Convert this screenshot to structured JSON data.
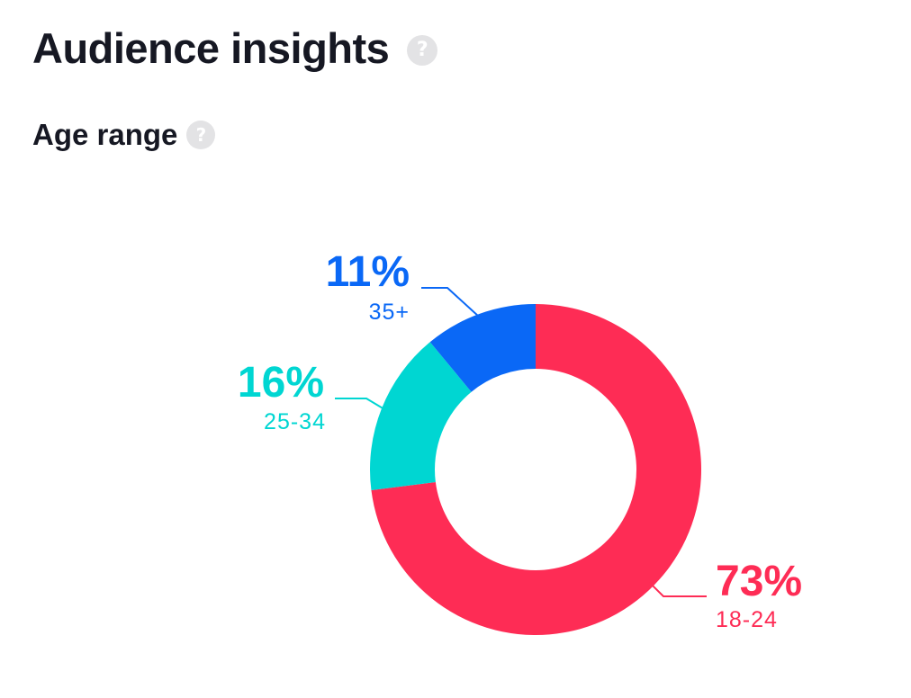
{
  "page": {
    "title": "Audience insights",
    "help_icon": "question-mark-icon"
  },
  "section": {
    "title": "Age range",
    "help_icon": "question-mark-icon"
  },
  "chart_data": {
    "type": "pie",
    "variant": "donut",
    "title": "Age range",
    "slices": [
      {
        "label": "18-24",
        "value": 73,
        "percent_label": "73%",
        "color": "#fe2c55"
      },
      {
        "label": "25-34",
        "value": 16,
        "percent_label": "16%",
        "color": "#00d6d2"
      },
      {
        "label": "35+",
        "value": 11,
        "percent_label": "11%",
        "color": "#0a68f6"
      }
    ]
  }
}
